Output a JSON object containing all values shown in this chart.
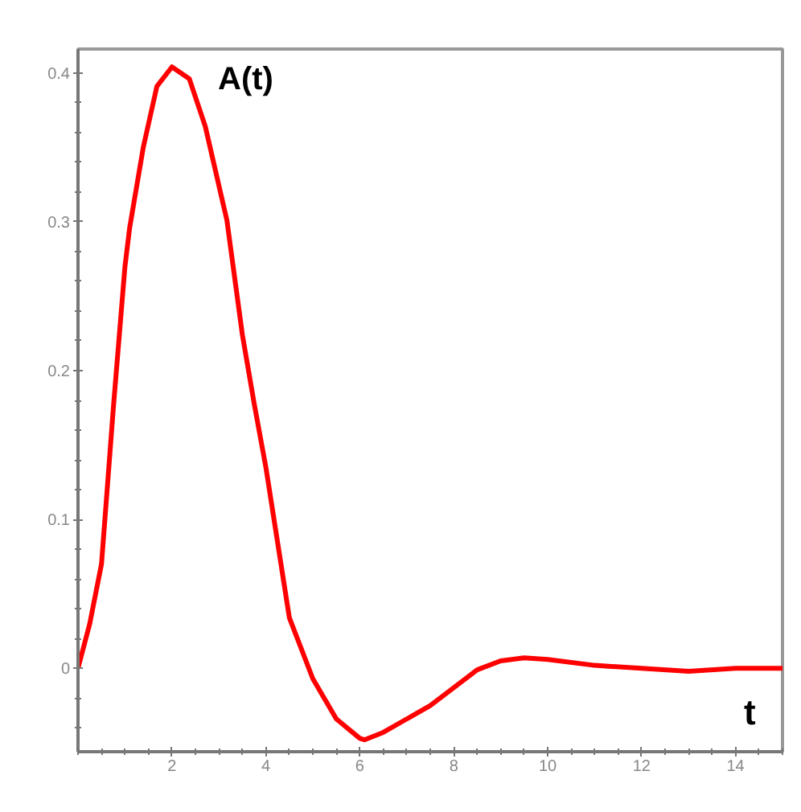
{
  "chart_data": {
    "type": "line",
    "xlabel": "t",
    "ylabel": "A(t)",
    "xlim": [
      0,
      15
    ],
    "ylim": [
      -0.056,
      0.416
    ],
    "xticks": [
      2,
      4,
      6,
      8,
      10,
      12,
      14
    ],
    "yticks": [
      0,
      0.1,
      0.2,
      0.3,
      0.4
    ],
    "grid": false,
    "marker": "none",
    "line_style": "solid",
    "series": [
      {
        "color": "#ff0000",
        "x": [
          0,
          0.25,
          0.5,
          0.76,
          1.0,
          1.1,
          1.39,
          1.68,
          2.0,
          2.37,
          2.71,
          3.17,
          3.5,
          3.75,
          4.0,
          4.5,
          5.0,
          5.5,
          6.0,
          6.1,
          6.5,
          7.0,
          7.5,
          8.0,
          8.5,
          9.0,
          9.5,
          10.0,
          11.0,
          12.0,
          13.0,
          14.0,
          15.0
        ],
        "values": [
          0,
          0.03,
          0.07,
          0.178,
          0.27,
          0.296,
          0.35,
          0.391,
          0.404,
          0.396,
          0.364,
          0.301,
          0.224,
          0.178,
          0.135,
          0.034,
          -0.007,
          -0.034,
          -0.047,
          -0.048,
          -0.043,
          -0.034,
          -0.025,
          -0.013,
          -0.001,
          0.005,
          0.007,
          0.006,
          0.002,
          0,
          -0.002,
          0,
          0
        ]
      }
    ]
  }
}
